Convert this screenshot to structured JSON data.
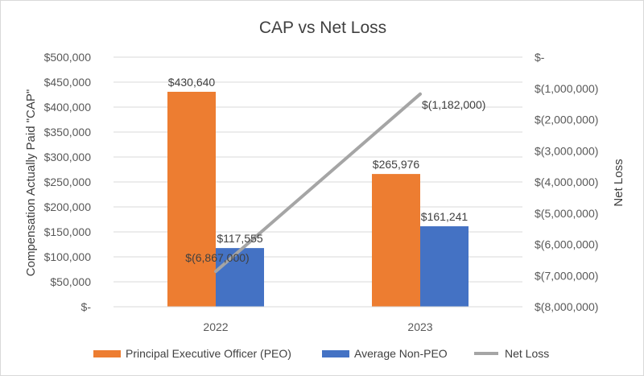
{
  "chart_data": {
    "type": "bar",
    "title": "CAP vs Net Loss",
    "categories": [
      "2022",
      "2023"
    ],
    "series": [
      {
        "name": "Principal Executive Officer (PEO)",
        "values": [
          430640,
          265976
        ],
        "labels": [
          "$430,640",
          "$265,976"
        ],
        "color": "#ed7d31",
        "axis": "left"
      },
      {
        "name": "Average Non-PEO",
        "values": [
          117555,
          161241
        ],
        "labels": [
          "$117,555",
          "$161,241"
        ],
        "color": "#4472c4",
        "axis": "left"
      },
      {
        "name": "Net Loss",
        "type": "line",
        "values": [
          -6867000,
          -1182000
        ],
        "labels": [
          "$(6,867,000)",
          "$(1,182,000)"
        ],
        "color": "#a5a5a5",
        "axis": "right"
      }
    ],
    "ylabel": "Compensation Actually Paid \"CAP\"",
    "y2label": "Net Loss",
    "ylim": [
      0,
      500000
    ],
    "y2lim": [
      -8000000,
      0
    ],
    "yticks": [
      "$-",
      "$50,000",
      "$100,000",
      "$150,000",
      "$200,000",
      "$250,000",
      "$300,000",
      "$350,000",
      "$400,000",
      "$450,000",
      "$500,000"
    ],
    "y2ticks": [
      "$(8,000,000)",
      "$(7,000,000)",
      "$(6,000,000)",
      "$(5,000,000)",
      "$(4,000,000)",
      "$(3,000,000)",
      "$(2,000,000)",
      "$(1,000,000)",
      "$-"
    ],
    "grid": true,
    "legend_position": "bottom"
  }
}
